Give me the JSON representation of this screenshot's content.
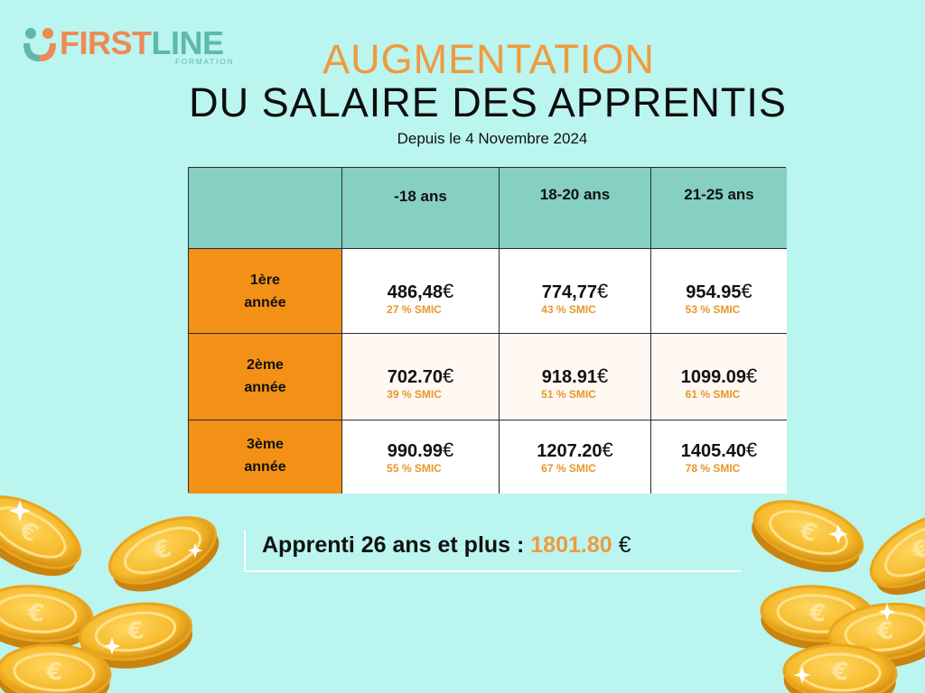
{
  "logo": {
    "first": "FIRST",
    "line": "LINE",
    "sub": "FORMATION"
  },
  "title_line1": "AUGMENTATION",
  "title_line2": "DU SALAIRE DES APPRENTIS",
  "subtitle": "Depuis le 4 Novembre 2024",
  "table": {
    "columns": [
      "-18 ans",
      "18-20 ans",
      "21-25 ans"
    ],
    "rows": [
      {
        "label": "1ère\nannée",
        "cells": [
          {
            "amount": "486,48",
            "currency": "€",
            "smic": "27 % SMIC"
          },
          {
            "amount": "774,77",
            "currency": "€",
            "smic": "43 % SMIC"
          },
          {
            "amount": "954.95",
            "currency": "€",
            "smic": "53 % SMIC"
          }
        ]
      },
      {
        "label": "2ème\nannée",
        "cells": [
          {
            "amount": "702.70",
            "currency": "€",
            "smic": "39 % SMIC"
          },
          {
            "amount": "918.91",
            "currency": "€",
            "smic": "51 % SMIC"
          },
          {
            "amount": "1099.09",
            "currency": "€",
            "smic": "61 % SMIC"
          }
        ]
      },
      {
        "label": "3ème\nannée",
        "cells": [
          {
            "amount": "990.99",
            "currency": "€",
            "smic": "55 % SMIC"
          },
          {
            "amount": "1207.20",
            "currency": "€",
            "smic": "67 % SMIC"
          },
          {
            "amount": "1405.40",
            "currency": "€",
            "smic": "78 % SMIC"
          }
        ]
      }
    ]
  },
  "banner": {
    "label": "Apprenti 26 ans et plus : ",
    "amount": "1801.80",
    "currency": "€"
  },
  "colors": {
    "background": "#baf5ef",
    "accent_orange": "#f09a3e",
    "header_teal": "#86cfc3",
    "row_label_orange": "#f29116",
    "coin_gold": "#f5b92a"
  },
  "icons": [
    "logo-people-icon",
    "coin-icon",
    "sparkle-icon"
  ]
}
